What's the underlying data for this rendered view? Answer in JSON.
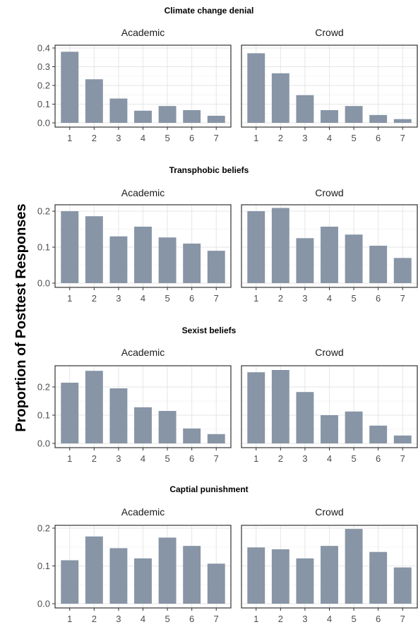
{
  "figure": {
    "ylabel": "Proportion of Posttest Responses",
    "bar_color": "#8795a6"
  },
  "chart_data": [
    {
      "type": "bar",
      "title": "Climate change denial",
      "categories": [
        "1",
        "2",
        "3",
        "4",
        "5",
        "6",
        "7"
      ],
      "ylim": [
        0,
        0.4
      ],
      "yticks": [
        "0.0",
        "0.1",
        "0.2",
        "0.3",
        "0.4"
      ],
      "yticks_values": [
        0,
        0.1,
        0.2,
        0.3,
        0.4
      ],
      "grid": true,
      "panels": [
        {
          "name": "Academic",
          "values": [
            0.38,
            0.233,
            0.13,
            0.065,
            0.09,
            0.068,
            0.038
          ]
        },
        {
          "name": "Crowd",
          "values": [
            0.372,
            0.265,
            0.148,
            0.068,
            0.09,
            0.042,
            0.02
          ]
        }
      ]
    },
    {
      "type": "bar",
      "title": "Transphobic beliefs",
      "categories": [
        "1",
        "2",
        "3",
        "4",
        "5",
        "6",
        "7"
      ],
      "ylim": [
        0,
        0.21
      ],
      "yticks": [
        "0.0",
        "0.1",
        "0.2"
      ],
      "yticks_values": [
        0,
        0.1,
        0.2
      ],
      "grid": true,
      "panels": [
        {
          "name": "Academic",
          "values": [
            0.2,
            0.186,
            0.13,
            0.157,
            0.127,
            0.11,
            0.09
          ]
        },
        {
          "name": "Crowd",
          "values": [
            0.2,
            0.209,
            0.125,
            0.157,
            0.135,
            0.104,
            0.07
          ]
        }
      ]
    },
    {
      "type": "bar",
      "title": "Sexist beliefs",
      "categories": [
        "1",
        "2",
        "3",
        "4",
        "5",
        "6",
        "7"
      ],
      "ylim": [
        0,
        0.265
      ],
      "yticks": [
        "0.0",
        "0.1",
        "0.2"
      ],
      "yticks_values": [
        0,
        0.1,
        0.2
      ],
      "grid": true,
      "panels": [
        {
          "name": "Academic",
          "values": [
            0.215,
            0.257,
            0.195,
            0.128,
            0.115,
            0.053,
            0.033
          ]
        },
        {
          "name": "Crowd",
          "values": [
            0.252,
            0.26,
            0.182,
            0.1,
            0.113,
            0.063,
            0.028
          ]
        }
      ]
    },
    {
      "type": "bar",
      "title": "Captial punishment",
      "categories": [
        "1",
        "2",
        "3",
        "4",
        "5",
        "6",
        "7"
      ],
      "ylim": [
        0,
        0.2
      ],
      "yticks": [
        "0.0",
        "0.1",
        "0.2"
      ],
      "yticks_values": [
        0,
        0.1,
        0.2
      ],
      "grid": true,
      "panels": [
        {
          "name": "Academic",
          "values": [
            0.115,
            0.178,
            0.147,
            0.12,
            0.175,
            0.153,
            0.106
          ]
        },
        {
          "name": "Crowd",
          "values": [
            0.149,
            0.144,
            0.12,
            0.153,
            0.198,
            0.137,
            0.096
          ]
        }
      ]
    }
  ]
}
